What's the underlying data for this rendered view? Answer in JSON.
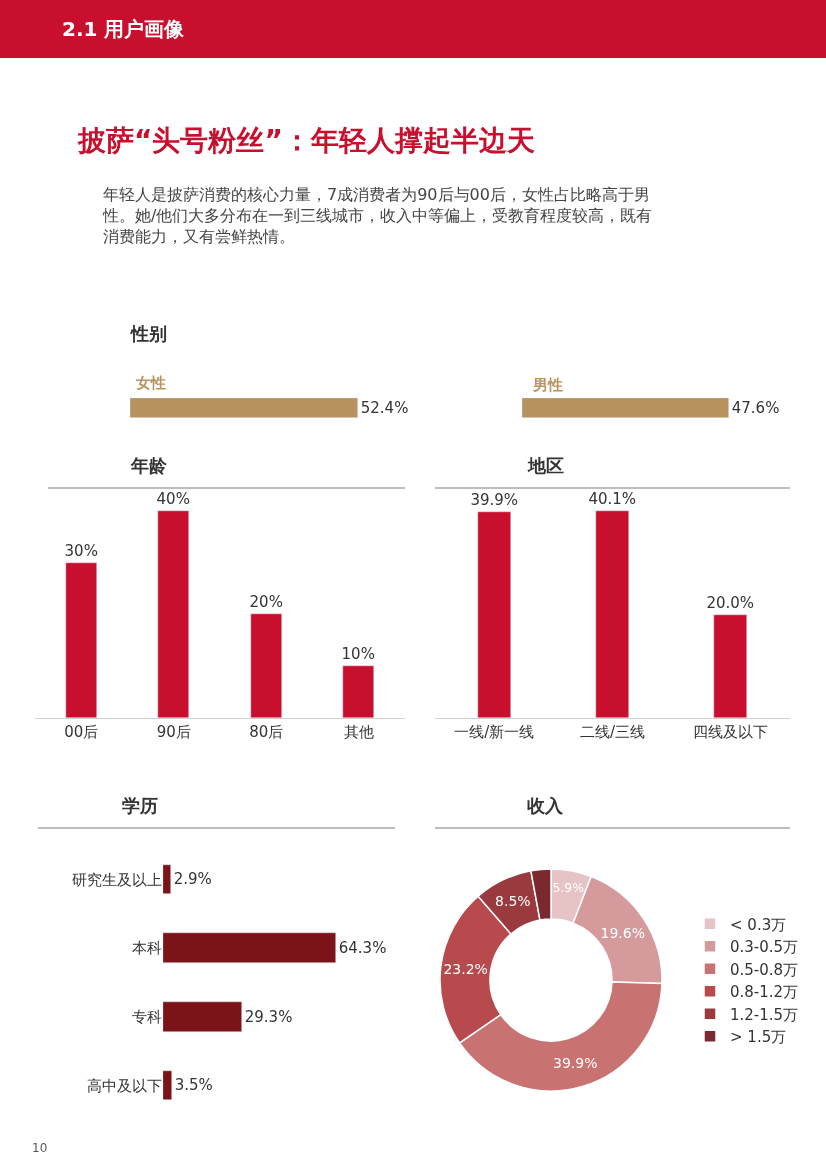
{
  "chart_data": [
    {
      "type": "other",
      "title": "披萨“头号粉丝”：年轻人撑起半边天",
      "subtitle": "年轻人是披萨消费的核心力量，7成消费者为90后与00后，女性占比略高于男性。她/他们大多分布在一到三线城市，收入中等偏上，受教育程度较高，既有消费能力，又有尝鲜热情。",
      "annotations": [
        "2.1 用户画像",
        "10"
      ]
    },
    {
      "type": "bar",
      "title": "性别",
      "orientation": "horizontal",
      "categories": [
        "女性"
      ],
      "values": [
        52.4
      ],
      "value_labels": [
        "52.4%"
      ],
      "color": "#b8935f",
      "tick_labels": false
    },
    {
      "type": "bar",
      "orientation": "horizontal",
      "categories": [
        "男性"
      ],
      "values": [
        47.6
      ],
      "value_labels": [
        "47.6%"
      ],
      "color": "#b8935f",
      "tick_labels": false
    },
    {
      "type": "bar",
      "title": "年龄",
      "categories": [
        "00后",
        "90后",
        "80后",
        "其他"
      ],
      "values": [
        30,
        40,
        20,
        10
      ],
      "value_labels": [
        "30%",
        "40%",
        "20%",
        "10%"
      ],
      "color": "#c8102e",
      "tick_labels": "x"
    },
    {
      "type": "bar",
      "title": "地区",
      "categories": [
        "一线/新一线",
        "二线/三线",
        "四线及以下"
      ],
      "values": [
        39.9,
        40.1,
        20.0
      ],
      "value_labels": [
        "39.9%",
        "40.1%",
        "20.0%"
      ],
      "color": "#c8102e",
      "tick_labels": "x"
    },
    {
      "type": "bar",
      "title": "学历",
      "orientation": "horizontal",
      "categories": [
        "研究生及以上",
        "本科",
        "专科",
        "高中及以下"
      ],
      "values": [
        2.9,
        64.3,
        29.3,
        3.5
      ],
      "value_labels": [
        "2.9%",
        "64.3%",
        "29.3%",
        "3.5%"
      ],
      "color": "#7b1418",
      "tick_labels": "y"
    },
    {
      "type": "donut",
      "title": "收入",
      "categories": [
        "< 0.3万",
        "0.3-0.5万",
        "0.5-0.8万",
        "0.8-1.2万",
        "1.2-1.5万",
        "> 1.5万"
      ],
      "values": [
        5.9,
        19.6,
        39.9,
        23.2,
        8.5,
        2.9
      ],
      "value_labels": [
        "5.9%",
        "19.6%",
        "39.9%",
        "23.2%",
        "8.5%",
        null
      ],
      "colors": [
        "#e6c3c5",
        "#d49a9c",
        "#c87272",
        "#b84a4e",
        "#9b3a3e",
        "#7a2a2e"
      ],
      "legend": "right"
    }
  ]
}
